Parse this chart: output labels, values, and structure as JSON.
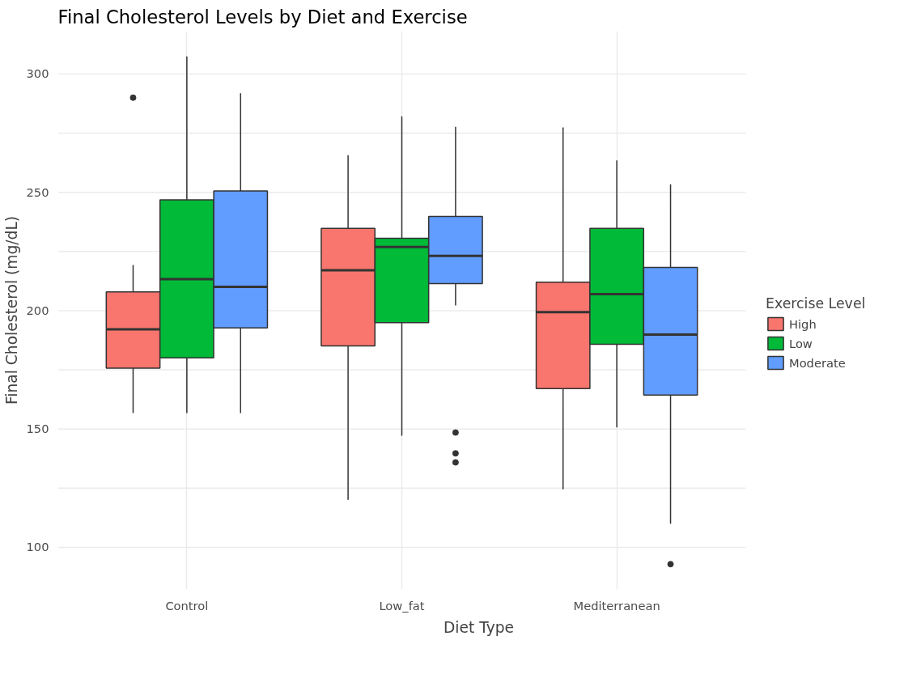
{
  "chart_data": {
    "type": "box",
    "title": "Final Cholesterol Levels by Diet and Exercise",
    "xlabel": "Diet Type",
    "ylabel": "Final Cholesterol (mg/dL)",
    "legend_title": "Exercise Level",
    "categories": [
      "Control",
      "Low_fat",
      "Mediterranean"
    ],
    "series": [
      {
        "name": "High",
        "color": "#f8766d",
        "boxes": [
          {
            "low": 156.7,
            "q1": 175.7,
            "median": 192.1,
            "q3": 207.9,
            "high": 219.3,
            "outliers": [
              290.0
            ]
          },
          {
            "low": 120.1,
            "q1": 185.1,
            "median": 217.1,
            "q3": 234.8,
            "high": 265.7
          },
          {
            "low": 124.5,
            "q1": 167.1,
            "median": 199.4,
            "q3": 212.0,
            "high": 277.4
          }
        ]
      },
      {
        "name": "Low",
        "color": "#00ba38",
        "boxes": [
          {
            "low": 156.7,
            "q1": 180.1,
            "median": 213.3,
            "q3": 246.8,
            "high": 307.4
          },
          {
            "low": 147.2,
            "q1": 194.9,
            "median": 226.9,
            "q3": 230.6,
            "high": 282.1
          },
          {
            "low": 150.7,
            "q1": 185.8,
            "median": 207.0,
            "q3": 234.8,
            "high": 263.5
          }
        ]
      },
      {
        "name": "Moderate",
        "color": "#619cff",
        "boxes": [
          {
            "low": 156.7,
            "q1": 192.7,
            "median": 210.1,
            "q3": 250.6,
            "high": 291.9
          },
          {
            "low": 202.2,
            "q1": 211.4,
            "median": 223.1,
            "q3": 239.8,
            "high": 277.7,
            "outliers": [
              148.5,
              139.7,
              135.9
            ]
          },
          {
            "low": 110.0,
            "q1": 164.3,
            "median": 189.9,
            "q3": 218.3,
            "high": 253.4,
            "outliers": [
              92.9
            ]
          }
        ]
      }
    ],
    "ylim": [
      82.2,
      318.1
    ],
    "yticks": [
      100,
      {
        "value": 125,
        "label": null
      },
      150,
      {
        "value": 175,
        "label": null
      },
      200,
      {
        "value": 225,
        "label": null
      },
      250,
      {
        "value": 275,
        "label": null
      },
      300
    ],
    "grid": true,
    "legend": "right"
  }
}
